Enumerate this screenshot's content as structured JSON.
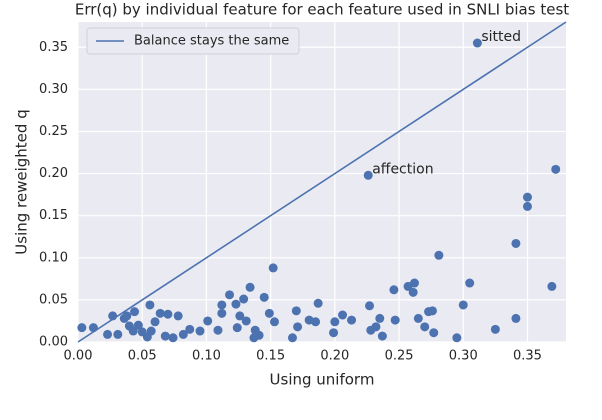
{
  "chart_data": {
    "type": "scatter",
    "title": "Err(q) by individual feature for each feature used in SNLI bias test",
    "xlabel": "Using uniform",
    "ylabel": "Using reweighted q",
    "xlim": [
      0,
      0.38
    ],
    "ylim": [
      0,
      0.38
    ],
    "xticks": [
      {
        "value": 0,
        "label": "0.00"
      },
      {
        "value": 0.05,
        "label": "0.05"
      },
      {
        "value": 0.1,
        "label": "0.10"
      },
      {
        "value": 0.15,
        "label": "0.15"
      },
      {
        "value": 0.2,
        "label": "0.20"
      },
      {
        "value": 0.25,
        "label": "0.25"
      },
      {
        "value": 0.3,
        "label": "0.30"
      },
      {
        "value": 0.35,
        "label": "0.35"
      }
    ],
    "yticks": [
      {
        "value": 0,
        "label": "0.00"
      },
      {
        "value": 0.05,
        "label": "0.05"
      },
      {
        "value": 0.1,
        "label": "0.10"
      },
      {
        "value": 0.15,
        "label": "0.15"
      },
      {
        "value": 0.2,
        "label": "0.20"
      },
      {
        "value": 0.25,
        "label": "0.25"
      },
      {
        "value": 0.3,
        "label": "0.30"
      },
      {
        "value": 0.35,
        "label": "0.35"
      }
    ],
    "grid": true,
    "legend": "upper left",
    "series": [
      {
        "name": "Balance stays the same",
        "color": "#4c72b0",
        "x": [
          0,
          0.38
        ],
        "values": [
          0,
          0.38
        ]
      }
    ],
    "points": {
      "color": "#4c72b0",
      "x": [
        0.311,
        0.226,
        0.372,
        0.35,
        0.35,
        0.341,
        0.281,
        0.152,
        0.369,
        0.305,
        0.262,
        0.257,
        0.261,
        0.246,
        0.3,
        0.341,
        0.325,
        0.295,
        0.27,
        0.273,
        0.276,
        0.265,
        0.277,
        0.247,
        0.227,
        0.235,
        0.232,
        0.228,
        0.237,
        0.213,
        0.206,
        0.2,
        0.199,
        0.187,
        0.185,
        0.18,
        0.171,
        0.17,
        0.167,
        0.153,
        0.149,
        0.145,
        0.134,
        0.129,
        0.118,
        0.123,
        0.112,
        0.112,
        0.126,
        0.131,
        0.124,
        0.138,
        0.141,
        0.101,
        0.109,
        0.095,
        0.087,
        0.074,
        0.078,
        0.07,
        0.056,
        0.064,
        0.06,
        0.057,
        0.05,
        0.047,
        0.04,
        0.043,
        0.036,
        0.044,
        0.038,
        0.031,
        0.027,
        0.023,
        0.012,
        0.003,
        0.082,
        0.068,
        0.054,
        0.137
      ],
      "values": [
        0.355,
        0.198,
        0.205,
        0.172,
        0.161,
        0.117,
        0.103,
        0.088,
        0.066,
        0.07,
        0.07,
        0.066,
        0.059,
        0.062,
        0.044,
        0.028,
        0.015,
        0.005,
        0.018,
        0.036,
        0.037,
        0.028,
        0.011,
        0.026,
        0.043,
        0.028,
        0.018,
        0.014,
        0.007,
        0.026,
        0.032,
        0.024,
        0.011,
        0.046,
        0.024,
        0.026,
        0.018,
        0.037,
        0.005,
        0.024,
        0.034,
        0.053,
        0.065,
        0.051,
        0.056,
        0.045,
        0.044,
        0.034,
        0.031,
        0.025,
        0.017,
        0.014,
        0.008,
        0.025,
        0.014,
        0.013,
        0.015,
        0.005,
        0.031,
        0.033,
        0.044,
        0.034,
        0.024,
        0.013,
        0.012,
        0.02,
        0.019,
        0.013,
        0.028,
        0.036,
        0.031,
        0.009,
        0.031,
        0.009,
        0.017,
        0.017,
        0.009,
        0.007,
        0.006,
        0.005
      ]
    },
    "annotations": [
      {
        "text": "sitted",
        "x": 0.311,
        "y": 0.355
      },
      {
        "text": "affection",
        "x": 0.226,
        "y": 0.198
      }
    ]
  }
}
